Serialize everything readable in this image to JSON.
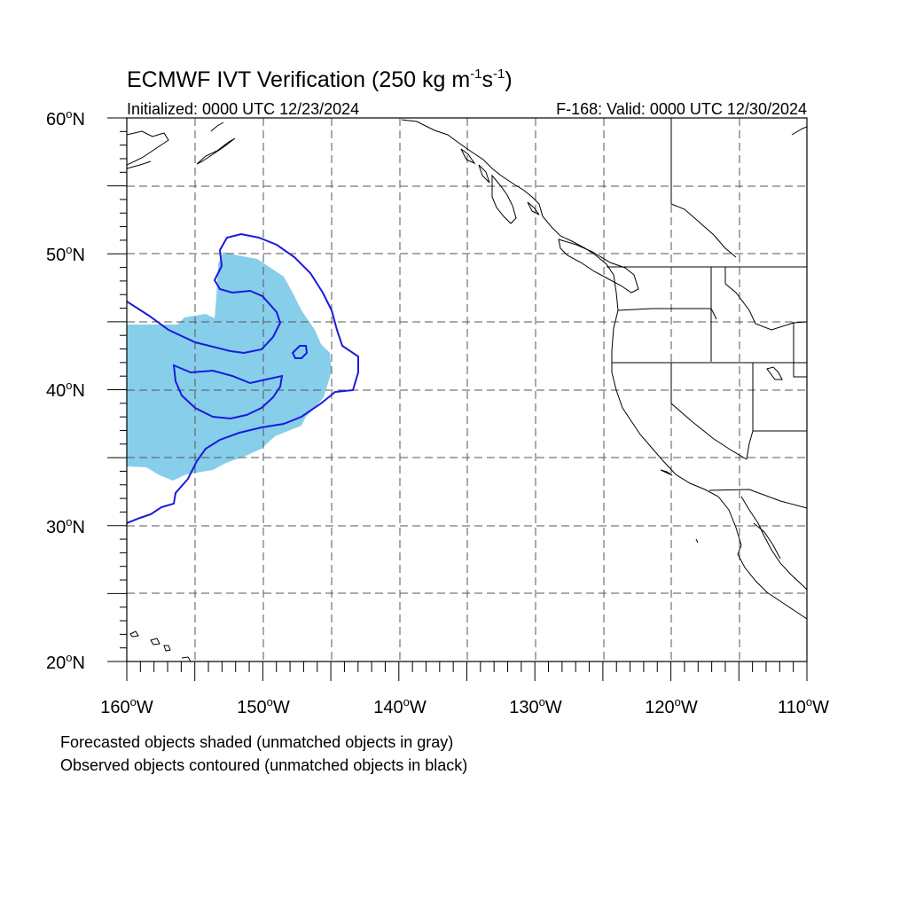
{
  "title": {
    "main": "ECMWF IVT Verification (250 kg m",
    "sup1": "-1",
    "mid": "s",
    "sup2": "-1",
    "end": ")"
  },
  "initialized": "Initialized: 0000 UTC 12/23/2024",
  "valid": "F-168: Valid: 0000 UTC 12/30/2024",
  "lat_labels": [
    "60",
    "50",
    "40",
    "30",
    "20"
  ],
  "lat_suffix": "N",
  "lon_labels": [
    "160",
    "150",
    "140",
    "130",
    "120",
    "110"
  ],
  "lon_suffix": "W",
  "degree": "o",
  "legend": {
    "line1": "Forecasted objects shaded (unmatched objects in gray)",
    "line2": "Observed objects contoured (unmatched objects in black)"
  },
  "colors": {
    "forecast_fill": "#87ceeb",
    "observed_contour": "#1a1add",
    "coastline": "#000000"
  },
  "map": {
    "lon_range": [
      -160,
      -110
    ],
    "lat_range": [
      20,
      60
    ],
    "grid_spacing_deg": 5
  }
}
